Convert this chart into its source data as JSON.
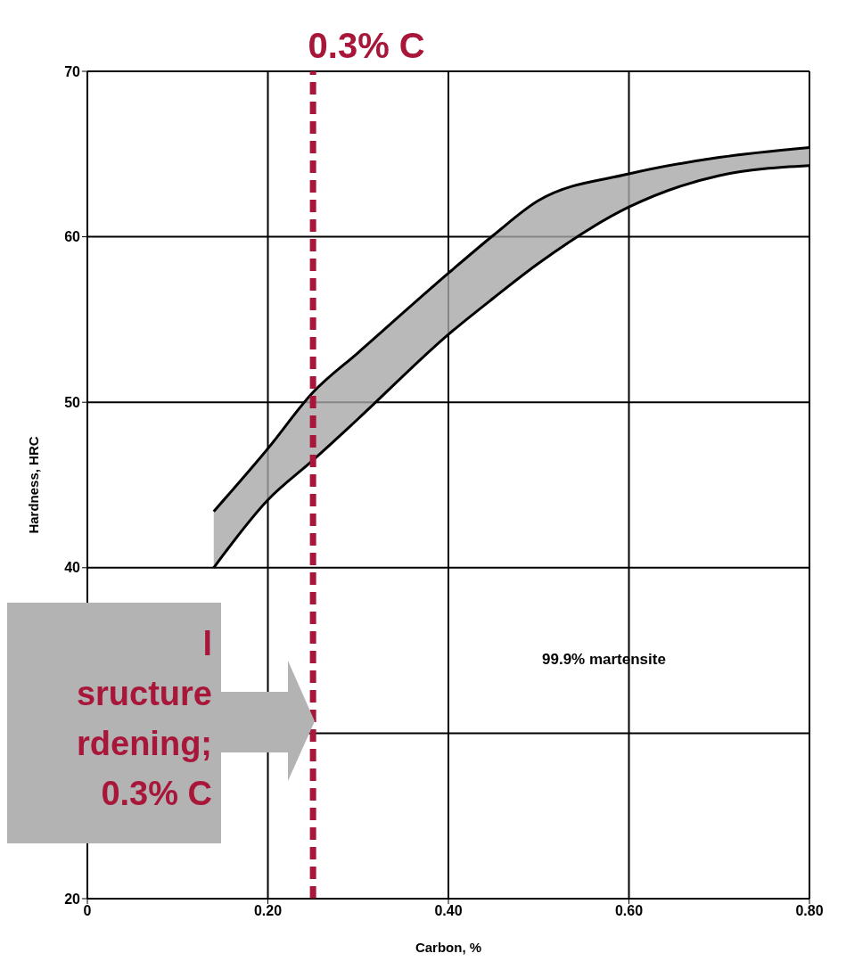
{
  "chart_data": {
    "type": "line",
    "xlabel": "Carbon, %",
    "ylabel": "Hardness, HRC",
    "x": [
      0.14,
      0.2,
      0.25,
      0.3,
      0.4,
      0.45,
      0.5,
      0.6,
      0.7,
      0.8
    ],
    "series": [
      {
        "color": "#000000",
        "values": [
          43.4,
          47.2,
          50.6,
          53,
          57.8,
          60.1,
          62.2,
          63.8,
          64.8,
          65.4
        ],
        "lower": [
          40,
          44.1,
          46.5,
          49,
          54.1,
          56.3,
          58.4,
          61.8,
          63.7,
          64.3
        ],
        "upper": [
          43.4,
          47.2,
          50.6,
          53,
          57.8,
          60.1,
          62.2,
          63.8,
          64.8,
          65.4
        ]
      },
      {
        "color": "#000000",
        "values": [
          40,
          44.1,
          46.5,
          49,
          54.1,
          56.3,
          58.4,
          61.8,
          63.7,
          64.3
        ]
      }
    ],
    "xlim": [
      0,
      0.8
    ],
    "xticks": [
      0,
      {
        "value": 0.2,
        "label": "0.20"
      },
      {
        "value": 0.4,
        "label": "0.40"
      },
      {
        "value": 0.6,
        "label": "0.60"
      },
      {
        "value": 0.8,
        "label": "0.80"
      }
    ],
    "ylim": [
      20,
      70
    ],
    "yticks": [
      20,
      {
        "value": 30,
        "label": null
      },
      40,
      50,
      60,
      70
    ],
    "grid": true,
    "marker": "none",
    "line_style": "solid",
    "ref_lines": [
      {
        "axis": "x",
        "value": 0.25,
        "label": "0.3% C",
        "color": "#a8163a",
        "line_style": "dashed"
      }
    ],
    "annotations": [
      "99.9% martensite",
      "l\nsructure\nrdening;\n0.3% C"
    ]
  }
}
